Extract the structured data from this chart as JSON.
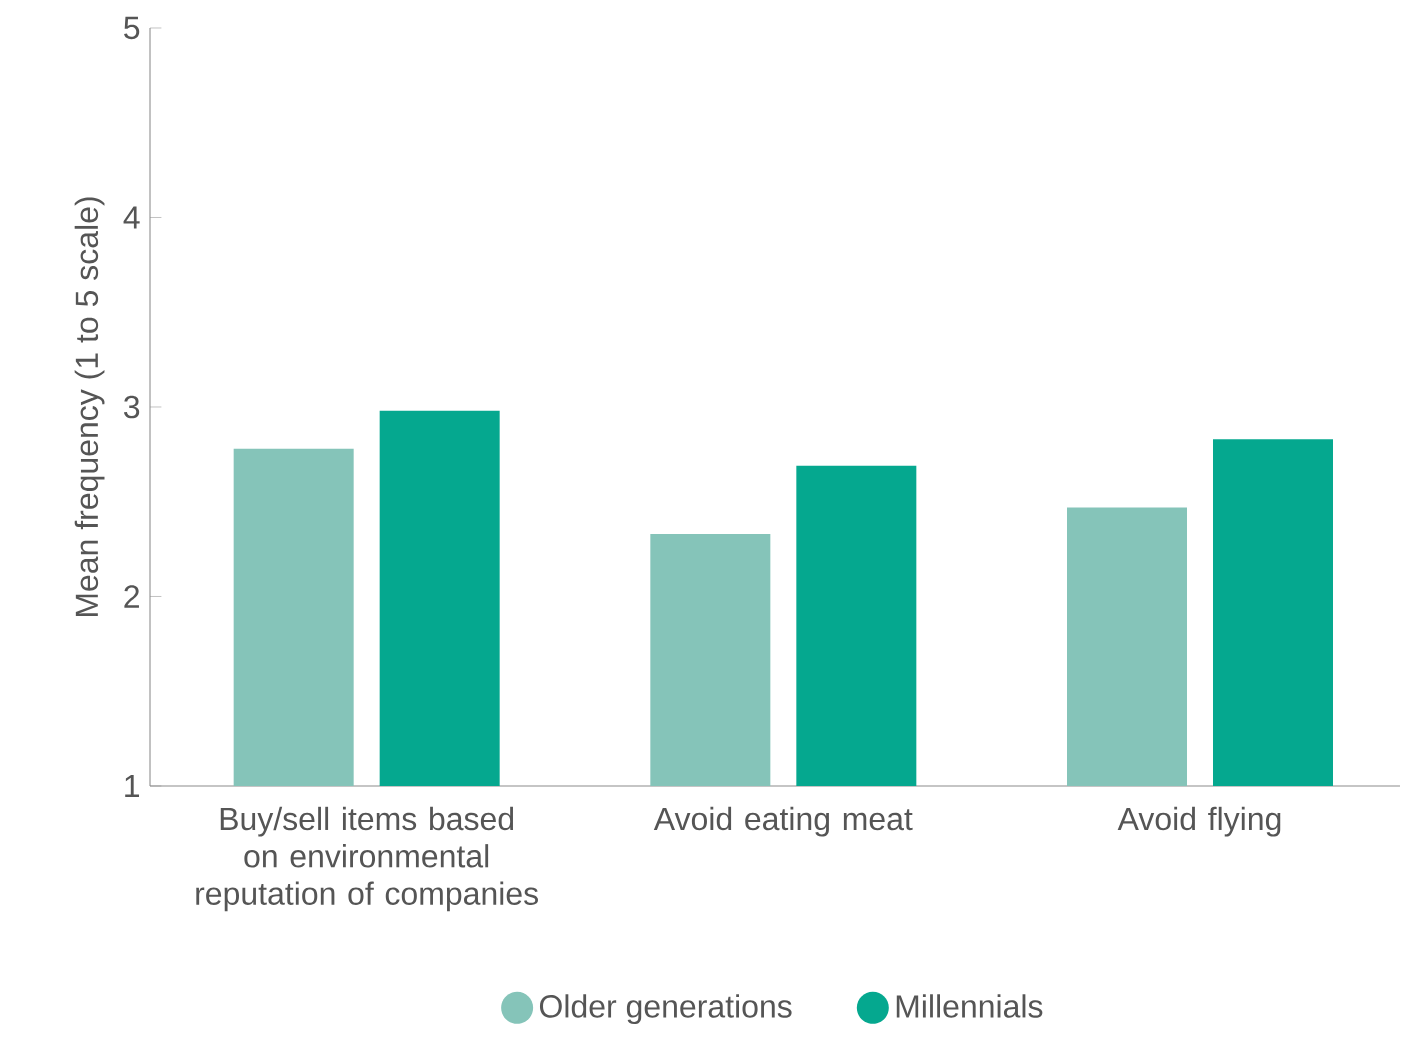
{
  "chart_data": {
    "type": "bar",
    "ylabel": "Mean frequency (1 to 5 scale)",
    "categories": [
      "Buy/sell items based on environmental reputation of companies",
      "Avoid eating meat",
      "Avoid flying"
    ],
    "series": [
      {
        "name": "Older generations",
        "color": "#85c4b9",
        "values": [
          2.78,
          2.33,
          2.47
        ]
      },
      {
        "name": "Millennials",
        "color": "#05a88f",
        "values": [
          2.98,
          2.69,
          2.83
        ]
      }
    ],
    "ylim": [
      1,
      5
    ],
    "yticks": [
      1,
      2,
      3,
      4,
      5
    ],
    "grid": false,
    "legend": "bottom"
  }
}
